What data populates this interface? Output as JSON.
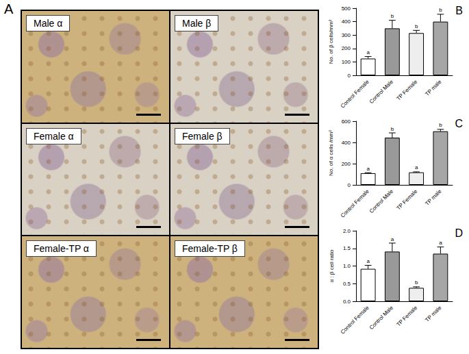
{
  "micrographs": {
    "title": "A",
    "labels": [
      "Male α",
      "Male β",
      "Female α",
      "Female β",
      "Female-TP α",
      "Female-TP β"
    ]
  },
  "chart_data": [
    {
      "type": "bar",
      "title": "B",
      "y_label": "No. of β cells/mm²",
      "categories": [
        "Control Female",
        "Control Male",
        "TP Female",
        "TP male"
      ],
      "values": [
        125,
        350,
        315,
        400
      ],
      "errors": [
        15,
        60,
        20,
        55
      ],
      "annotations": [
        "a",
        "b",
        "b",
        "b"
      ],
      "colors": [
        "#ffffff",
        "#999999",
        "#eeeeee",
        "#a6a6a6"
      ],
      "ylim": [
        0,
        500
      ],
      "yticks": [
        0,
        100,
        200,
        300,
        400,
        500
      ],
      "grid": false
    },
    {
      "type": "bar",
      "title": "C",
      "y_label": "No. of α cells /mm²",
      "categories": [
        "Control Female",
        "Control Male",
        "TP Female",
        "TP male"
      ],
      "values": [
        110,
        445,
        118,
        505
      ],
      "errors": [
        5,
        45,
        5,
        18
      ],
      "annotations": [
        "a",
        "b",
        "a",
        "b"
      ],
      "colors": [
        "#ffffff",
        "#999999",
        "#eeeeee",
        "#a6a6a6"
      ],
      "ylim": [
        0,
        600
      ],
      "yticks": [
        0,
        200,
        400,
        600
      ],
      "grid": false
    },
    {
      "type": "bar",
      "title": "D",
      "y_label": "α : β cell ratio",
      "categories": [
        "Control Female",
        "Control Male",
        "TP Female",
        "TP male"
      ],
      "values": [
        0.92,
        1.41,
        0.38,
        1.35
      ],
      "errors": [
        0.1,
        0.24,
        0.03,
        0.19
      ],
      "annotations": [
        "a",
        "a",
        "b",
        "a"
      ],
      "colors": [
        "#ffffff",
        "#999999",
        "#eeeeee",
        "#a6a6a6"
      ],
      "ylim": [
        0,
        2
      ],
      "yticks": [
        {
          "value": 0,
          "label": "0.0"
        },
        0.5,
        {
          "value": 1,
          "label": "1.0"
        },
        1.5,
        {
          "value": 2,
          "label": "2.0"
        }
      ],
      "grid": false
    }
  ]
}
